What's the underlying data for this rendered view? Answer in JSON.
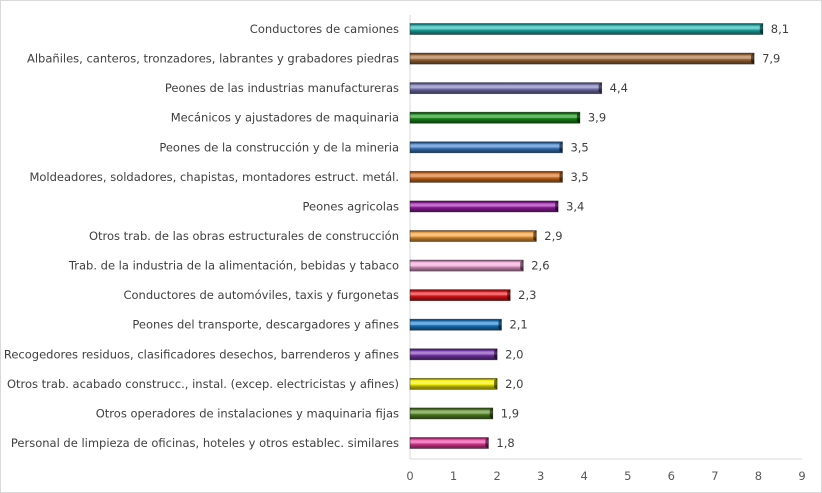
{
  "chart_data": {
    "type": "bar",
    "orientation": "horizontal",
    "title": "",
    "xlabel": "",
    "ylabel": "",
    "xlim": [
      0,
      9
    ],
    "x_ticks": [
      "0",
      "1",
      "2",
      "3",
      "4",
      "5",
      "6",
      "7",
      "8",
      "9"
    ],
    "grid": false,
    "legend": "none",
    "categories": [
      "Conductores de camiones",
      "Albañiles, canteros, tronzadores, labrantes y grabadores piedras",
      "Peones de las industrias manufactureras",
      "Mecánicos y ajustadores de maquinaria",
      "Peones de la construcción y de la mineria",
      "Moldeadores, soldadores, chapistas, montadores estruct. metál.",
      "Peones agricolas",
      "Otros trab. de las obras estructurales de construcción",
      "Trab. de la industria de la alimentación, bebidas y tabaco",
      "Conductores de automóviles, taxis y furgonetas",
      "Peones del transporte, descargadores y afines",
      "Recogedores residuos, clasificadores desechos, barrenderos y afines",
      "Otros trab. acabado construcc., instal. (excep. electricistas y afines)",
      "Otros operadores de instalaciones y maquinaria fijas",
      "Personal de limpieza de oficinas, hoteles y otros establec. similares"
    ],
    "values": [
      8.1,
      7.9,
      4.4,
      3.9,
      3.5,
      3.5,
      3.4,
      2.9,
      2.6,
      2.3,
      2.1,
      2.0,
      2.0,
      1.9,
      1.8
    ],
    "value_labels": [
      "8,1",
      "7,9",
      "4,4",
      "3,9",
      "3,5",
      "3,5",
      "3,4",
      "2,9",
      "2,6",
      "2,3",
      "2,1",
      "2,0",
      "2,0",
      "1,9",
      "1,8"
    ],
    "colors": [
      "#1fb5b0",
      "#a86f3c",
      "#7a78b4",
      "#1e8c1e",
      "#3f7fc8",
      "#d9701f",
      "#9a1ea8",
      "#f0a040",
      "#f0a8d8",
      "#e8161c",
      "#1a7fd0",
      "#7a3ab0",
      "#f4f000",
      "#5a8a2a",
      "#e83c9c"
    ]
  }
}
